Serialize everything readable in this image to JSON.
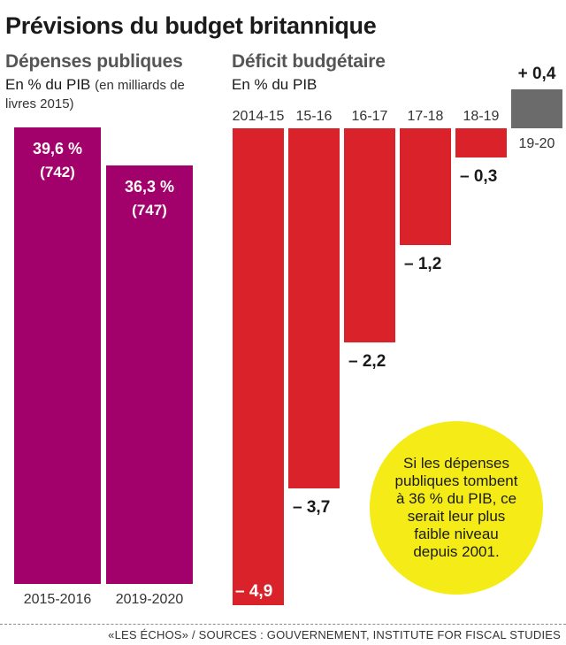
{
  "title": "Prévisions du budget britannique",
  "footer": "«LES ÉCHOS» / SOURCES : GOUVERNEMENT, INSTITUTE FOR FISCAL STUDIES",
  "callout": "Si les dépenses publiques tombent à 36 % du PIB, ce serait leur plus faible niveau depuis 2001.",
  "colors": {
    "spending": "#a2006a",
    "deficit": "#d9222a",
    "surplus": "#6b6b6b",
    "callout": "#f5ec17"
  },
  "chart_data": [
    {
      "type": "bar",
      "title": "Dépenses publiques",
      "subtitle": "En % du PIB",
      "subtitle_note": "(en milliards de livres 2015)",
      "categories": [
        "2015-2016",
        "2019-2020"
      ],
      "values": [
        39.6,
        36.3
      ],
      "value_labels": [
        "39,6 %",
        "36,3 %"
      ],
      "secondary_values": [
        742,
        747
      ],
      "secondary_labels": [
        "(742)",
        "(747)"
      ],
      "ylim": [
        0,
        39.6
      ]
    },
    {
      "type": "bar",
      "title": "Déficit budgétaire",
      "subtitle": "En % du PIB",
      "categories": [
        "2014-15",
        "15-16",
        "16-17",
        "17-18",
        "18-19",
        "19-20"
      ],
      "values": [
        -4.9,
        -3.7,
        -2.2,
        -1.2,
        -0.3,
        0.4
      ],
      "value_labels": [
        "– 4,9",
        "– 3,7",
        "– 2,2",
        "– 1,2",
        "– 0,3",
        "+ 0,4"
      ],
      "ylim": [
        -4.9,
        0.4
      ]
    }
  ]
}
